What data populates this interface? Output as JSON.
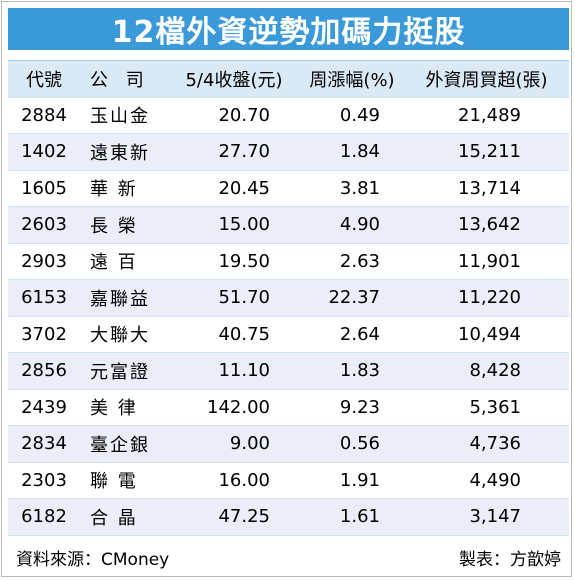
{
  "title": "12檔外資逆勢加碼力挺股",
  "headers": [
    "代號",
    "公 司",
    "5/4收盤(元)",
    "周漲幅(%)",
    "外資周買超(張)"
  ],
  "rows": [
    [
      "2884",
      "玉山金",
      "20.70",
      "0.49",
      "21,489"
    ],
    [
      "1402",
      "遠東新",
      "27.70",
      "1.84",
      "15,211"
    ],
    [
      "1605",
      "華 新",
      "20.45",
      "3.81",
      "13,714"
    ],
    [
      "2603",
      "長 榮",
      "15.00",
      "4.90",
      "13,642"
    ],
    [
      "2903",
      "遠 百",
      "19.50",
      "2.63",
      "11,901"
    ],
    [
      "6153",
      "嘉聯益",
      "51.70",
      "22.37",
      "11,220"
    ],
    [
      "3702",
      "大聯大",
      "40.75",
      "2.64",
      "10,494"
    ],
    [
      "2856",
      "元富證",
      "11.10",
      "1.83",
      "8,428"
    ],
    [
      "2439",
      "美 律",
      "142.00",
      "9.23",
      "5,361"
    ],
    [
      "2834",
      "臺企銀",
      "9.00",
      "0.56",
      "4,736"
    ],
    [
      "2303",
      "聯 電",
      "16.00",
      "1.91",
      "4,490"
    ],
    [
      "6182",
      "合 晶",
      "47.25",
      "1.61",
      "3,147"
    ]
  ],
  "footer": {
    "source": "資料來源：CMoney",
    "author": "製表：方歆婷"
  },
  "colors": {
    "title_bg": "#3a9ad9",
    "header_bg": "#d9e9f6",
    "stripe_bg": "#ebeef8"
  }
}
